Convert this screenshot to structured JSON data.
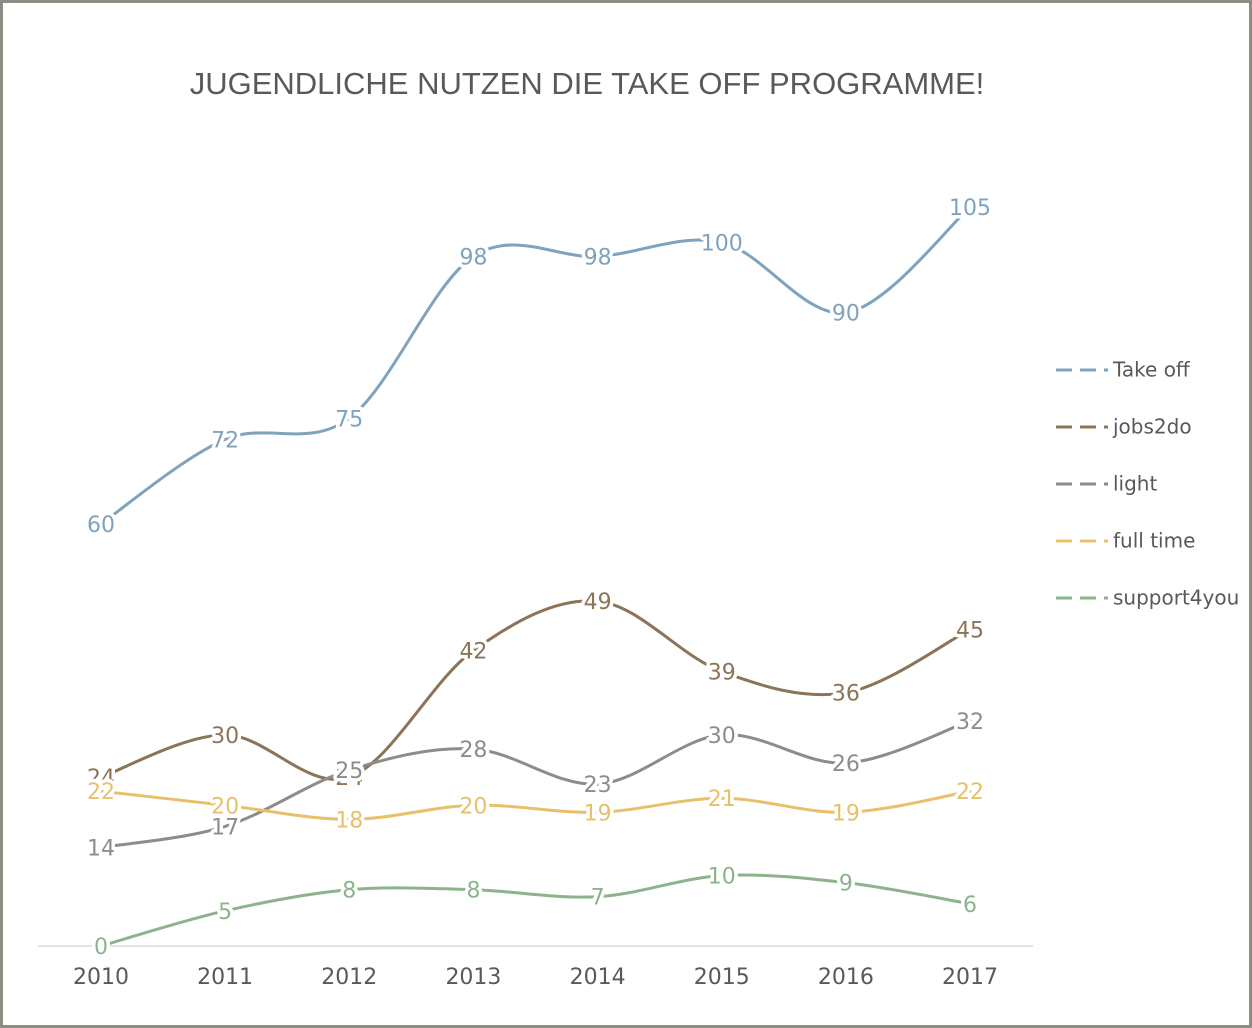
{
  "chart_data": {
    "type": "line",
    "title": "JUGENDLICHE NUTZEN DIE TAKE OFF PROGRAMME!",
    "categories": [
      "2010",
      "2011",
      "2012",
      "2013",
      "2014",
      "2015",
      "2016",
      "2017"
    ],
    "ylim": [
      0,
      110
    ],
    "legend": "right",
    "smooth": true,
    "series": [
      {
        "name": "Take off",
        "color": "#7ea3bd",
        "values": [
          60,
          72,
          75,
          98,
          98,
          100,
          90,
          105
        ]
      },
      {
        "name": "jobs2do",
        "color": "#8b7457",
        "values": [
          24,
          30,
          24,
          42,
          49,
          39,
          36,
          45
        ]
      },
      {
        "name": "light",
        "color": "#8c8c8c",
        "values": [
          14,
          17,
          25,
          28,
          23,
          30,
          26,
          32
        ]
      },
      {
        "name": "full time",
        "color": "#e8c06a",
        "values": [
          22,
          20,
          18,
          20,
          19,
          21,
          19,
          22
        ]
      },
      {
        "name": "support4you",
        "color": "#8db38b",
        "values": [
          0,
          5,
          8,
          8,
          7,
          10,
          9,
          6
        ]
      }
    ]
  }
}
